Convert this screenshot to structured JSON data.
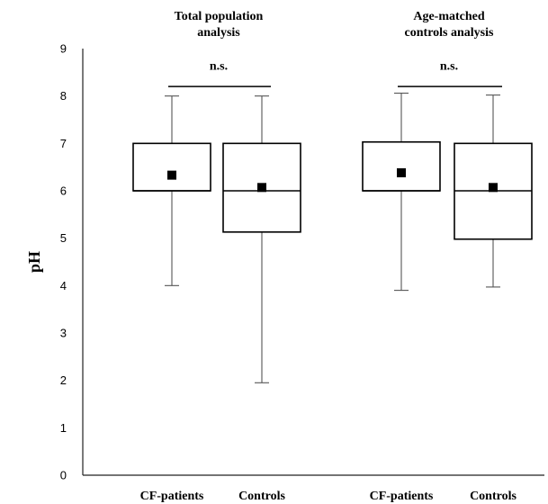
{
  "chart_data": {
    "type": "box",
    "ylabel": "pH",
    "ylim": [
      0,
      9
    ],
    "yticks": [
      0,
      1,
      2,
      3,
      4,
      5,
      6,
      7,
      8,
      9
    ],
    "grid": false,
    "mean_marker_color": "#000000",
    "box_edge_color": "#000000",
    "whisker_color": "#555555",
    "groups": [
      {
        "title_lines": [
          "Total population",
          "analysis"
        ],
        "significance": "n.s.",
        "boxes": [
          {
            "label": "CF-patients",
            "min": 4.0,
            "q1": 6.0,
            "median": 6.0,
            "q3": 7.0,
            "max": 8.0,
            "mean": 6.33
          },
          {
            "label": "Controls",
            "min": 1.95,
            "q1": 5.13,
            "median": 6.0,
            "q3": 7.0,
            "max": 8.0,
            "mean": 6.07
          }
        ]
      },
      {
        "title_lines": [
          "Age-matched",
          "controls analysis"
        ],
        "significance": "n.s.",
        "boxes": [
          {
            "label": "CF-patients",
            "min": 3.9,
            "q1": 6.0,
            "median": 6.0,
            "q3": 7.03,
            "max": 8.06,
            "mean": 6.38
          },
          {
            "label": "Controls",
            "min": 3.97,
            "q1": 4.98,
            "median": 6.0,
            "q3": 7.0,
            "max": 8.02,
            "mean": 6.07
          }
        ]
      }
    ]
  }
}
